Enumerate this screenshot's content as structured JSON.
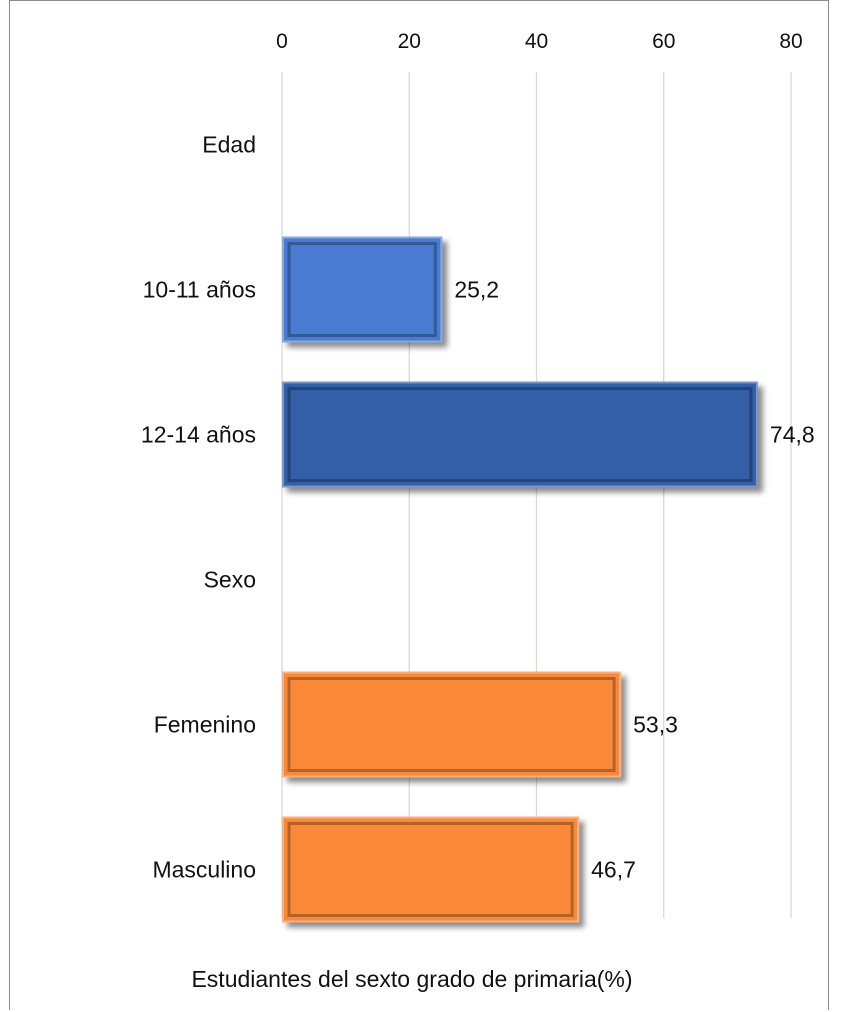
{
  "chart_data": {
    "type": "bar",
    "orientation": "horizontal",
    "xlabel": "Estudiantes del sexto grado de primaria(%)",
    "xlim": [
      0,
      80
    ],
    "xticks": [
      0,
      20,
      40,
      60,
      80
    ],
    "x_axis_position": "top",
    "grid": true,
    "categories": [
      {
        "label": "Edad",
        "value": null,
        "color": null
      },
      {
        "label": "10-11 años",
        "value": 25.2,
        "value_label": "25,2",
        "color": "#4a7bd0"
      },
      {
        "label": "12-14 años",
        "value": 74.8,
        "value_label": "74,8",
        "color": "#325ea8"
      },
      {
        "label": "Sexo",
        "value": null,
        "color": null
      },
      {
        "label": "Femenino",
        "value": 53.3,
        "value_label": "53,3",
        "color": "#f98839"
      },
      {
        "label": "Masculino",
        "value": 46.7,
        "value_label": "46,7",
        "color": "#f98839"
      }
    ]
  }
}
